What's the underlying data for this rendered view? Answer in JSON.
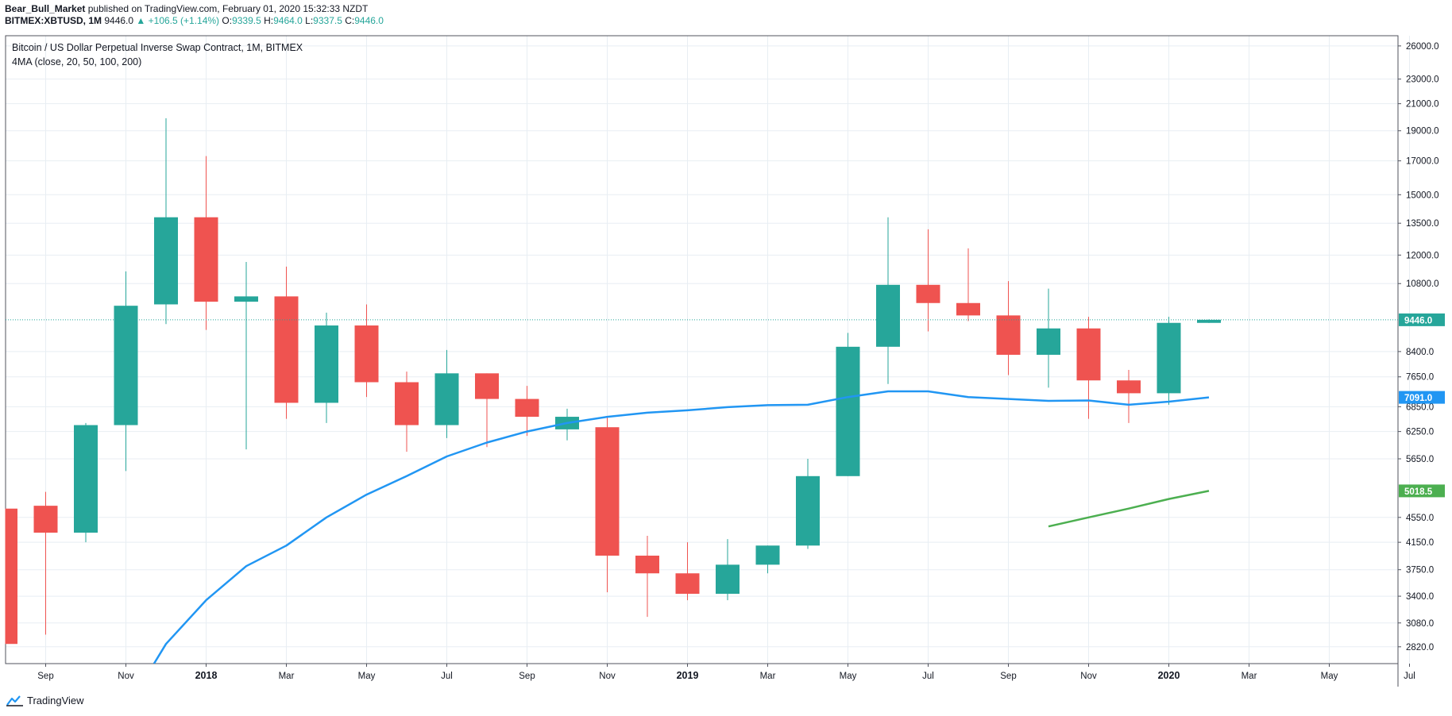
{
  "header": {
    "author": "Bear_Bull_Market",
    "published_text": "published on TradingView.com, February 01, 2020 15:32:33 NZDT",
    "symbol": "BITMEX:XBTUSD, 1M",
    "last": "9446.0",
    "change": "+106.5 (+1.14%)",
    "o_label": "O:",
    "o_value": "9339.5",
    "h_label": "H:",
    "h_value": "9464.0",
    "l_label": "L:",
    "l_value": "9337.5",
    "c_label": "C:",
    "c_value": "9446.0",
    "up_arrow": "▲"
  },
  "legend": {
    "title": "Bitcoin / US Dollar Perpetual Inverse Swap Contract, 1M, BITMEX",
    "indicator": "4MA (close, 20, 50, 100, 200)"
  },
  "footer": {
    "brand": "TradingView",
    "logo_icon": "tradingview-logo-icon"
  },
  "colors": {
    "up": "#26a69a",
    "down": "#ef5350",
    "ma20": "#2196f3",
    "ma50": "#4caf50",
    "grid": "#e8eef3",
    "axis_text": "#131722",
    "price_line": "#26a69a"
  },
  "chart_data": {
    "type": "candlestick",
    "title": "Bitcoin / US Dollar Perpetual Inverse Swap Contract, 1M, BITMEX",
    "y_scale": "log",
    "y_range": [
      2650,
      27000
    ],
    "y_ticks": [
      "2820.0",
      "3080.0",
      "3400.0",
      "3750.0",
      "4150.0",
      "4550.0",
      "5650.0",
      "6250.0",
      "6850.0",
      "7650.0",
      "8400.0",
      "10800.0",
      "12000.0",
      "13500.0",
      "15000.0",
      "17000.0",
      "19000.0",
      "21000.0",
      "23000.0",
      "26000.0"
    ],
    "x_ticks": [
      {
        "label": "Sep",
        "t": 1
      },
      {
        "label": "Nov",
        "t": 3
      },
      {
        "label": "2018",
        "t": 5,
        "bold": true
      },
      {
        "label": "Mar",
        "t": 7
      },
      {
        "label": "May",
        "t": 9
      },
      {
        "label": "Jul",
        "t": 11
      },
      {
        "label": "Sep",
        "t": 13
      },
      {
        "label": "Nov",
        "t": 15
      },
      {
        "label": "2019",
        "t": 17,
        "bold": true
      },
      {
        "label": "Mar",
        "t": 19
      },
      {
        "label": "May",
        "t": 21
      },
      {
        "label": "Jul",
        "t": 23
      },
      {
        "label": "Sep",
        "t": 25
      },
      {
        "label": "Nov",
        "t": 27
      },
      {
        "label": "2020",
        "t": 29,
        "bold": true
      },
      {
        "label": "Mar",
        "t": 31
      },
      {
        "label": "May",
        "t": 33
      },
      {
        "label": "Jul",
        "t": 35
      }
    ],
    "candles": [
      {
        "date": "2017-08",
        "o": 4700,
        "h": 4700,
        "l": 2850,
        "c": 2850
      },
      {
        "date": "2017-09",
        "o": 4750,
        "h": 5000,
        "l": 2950,
        "c": 4300
      },
      {
        "date": "2017-10",
        "o": 4300,
        "h": 6450,
        "l": 4150,
        "c": 6400
      },
      {
        "date": "2017-11",
        "o": 6400,
        "h": 11300,
        "l": 5400,
        "c": 9950
      },
      {
        "date": "2017-12",
        "o": 10000,
        "h": 19900,
        "l": 9300,
        "c": 13800
      },
      {
        "date": "2018-01",
        "o": 13800,
        "h": 17300,
        "l": 9100,
        "c": 10100
      },
      {
        "date": "2018-02",
        "o": 10100,
        "h": 11700,
        "l": 5850,
        "c": 10300
      },
      {
        "date": "2018-03",
        "o": 10300,
        "h": 11500,
        "l": 6550,
        "c": 6950
      },
      {
        "date": "2018-04",
        "o": 6950,
        "h": 9700,
        "l": 6450,
        "c": 9250
      },
      {
        "date": "2018-05",
        "o": 9250,
        "h": 10000,
        "l": 7100,
        "c": 7500
      },
      {
        "date": "2018-06",
        "o": 7500,
        "h": 7800,
        "l": 5800,
        "c": 6400
      },
      {
        "date": "2018-07",
        "o": 6400,
        "h": 8450,
        "l": 6100,
        "c": 7750
      },
      {
        "date": "2018-08",
        "o": 7750,
        "h": 7750,
        "l": 5900,
        "c": 7050
      },
      {
        "date": "2018-09",
        "o": 7050,
        "h": 7400,
        "l": 6150,
        "c": 6600
      },
      {
        "date": "2018-10",
        "o": 6300,
        "h": 6800,
        "l": 6050,
        "c": 6600
      },
      {
        "date": "2018-11",
        "o": 6350,
        "h": 6580,
        "l": 3450,
        "c": 3950
      },
      {
        "date": "2018-12",
        "o": 3950,
        "h": 4250,
        "l": 3150,
        "c": 3700
      },
      {
        "date": "2019-01",
        "o": 3700,
        "h": 4150,
        "l": 3350,
        "c": 3430
      },
      {
        "date": "2019-02",
        "o": 3430,
        "h": 4200,
        "l": 3350,
        "c": 3820
      },
      {
        "date": "2019-03",
        "o": 3820,
        "h": 4100,
        "l": 3700,
        "c": 4100
      },
      {
        "date": "2019-04",
        "o": 4100,
        "h": 5650,
        "l": 4050,
        "c": 5300
      },
      {
        "date": "2019-05",
        "o": 5300,
        "h": 9000,
        "l": 5300,
        "c": 8550
      },
      {
        "date": "2019-06",
        "o": 8550,
        "h": 13800,
        "l": 7450,
        "c": 10750
      },
      {
        "date": "2019-07",
        "o": 10750,
        "h": 13200,
        "l": 9050,
        "c": 10050
      },
      {
        "date": "2019-08",
        "o": 10050,
        "h": 12300,
        "l": 9400,
        "c": 9600
      },
      {
        "date": "2019-09",
        "o": 9600,
        "h": 10900,
        "l": 7700,
        "c": 8300
      },
      {
        "date": "2019-10",
        "o": 8300,
        "h": 10600,
        "l": 7350,
        "c": 9150
      },
      {
        "date": "2019-11",
        "o": 9150,
        "h": 9550,
        "l": 6550,
        "c": 7550
      },
      {
        "date": "2019-12",
        "o": 7550,
        "h": 7850,
        "l": 6450,
        "c": 7200
      },
      {
        "date": "2020-01",
        "o": 7200,
        "h": 9550,
        "l": 6900,
        "c": 9339.5
      },
      {
        "date": "2020-02",
        "o": 9339.5,
        "h": 9464.0,
        "l": 9337.5,
        "c": 9446.0
      }
    ],
    "series": [
      {
        "name": "MA 20",
        "color": "#2196f3",
        "points": [
          {
            "t": 3.7,
            "v": 2650
          },
          {
            "t": 4,
            "v": 2850
          },
          {
            "t": 5,
            "v": 3350
          },
          {
            "t": 6,
            "v": 3800
          },
          {
            "t": 7,
            "v": 4100
          },
          {
            "t": 8,
            "v": 4550
          },
          {
            "t": 9,
            "v": 4950
          },
          {
            "t": 10,
            "v": 5300
          },
          {
            "t": 11,
            "v": 5700
          },
          {
            "t": 12,
            "v": 6000
          },
          {
            "t": 13,
            "v": 6250
          },
          {
            "t": 14,
            "v": 6450
          },
          {
            "t": 15,
            "v": 6600
          },
          {
            "t": 16,
            "v": 6700
          },
          {
            "t": 17,
            "v": 6760
          },
          {
            "t": 18,
            "v": 6840
          },
          {
            "t": 19,
            "v": 6890
          },
          {
            "t": 20,
            "v": 6900
          },
          {
            "t": 21,
            "v": 7100
          },
          {
            "t": 22,
            "v": 7250
          },
          {
            "t": 23,
            "v": 7250
          },
          {
            "t": 24,
            "v": 7100
          },
          {
            "t": 25,
            "v": 7050
          },
          {
            "t": 26,
            "v": 7000
          },
          {
            "t": 27,
            "v": 7010
          },
          {
            "t": 28,
            "v": 6900
          },
          {
            "t": 29,
            "v": 6980
          },
          {
            "t": 30,
            "v": 7091
          }
        ]
      },
      {
        "name": "MA 50",
        "color": "#4caf50",
        "points": [
          {
            "t": 26,
            "v": 4400
          },
          {
            "t": 27,
            "v": 4550
          },
          {
            "t": 28,
            "v": 4700
          },
          {
            "t": 29,
            "v": 4870
          },
          {
            "t": 30,
            "v": 5018.5
          }
        ]
      }
    ],
    "price_labels": [
      {
        "value": "9446.0",
        "price": 9446,
        "color": "#26a69a",
        "label_color": "#26a69a"
      },
      {
        "value": "7091.0",
        "price": 7091,
        "color": "#2196f3",
        "label_color": "#2196f3"
      },
      {
        "value": "5018.5",
        "price": 5018.5,
        "color": "#4caf50",
        "label_color": "#4caf50"
      }
    ]
  }
}
